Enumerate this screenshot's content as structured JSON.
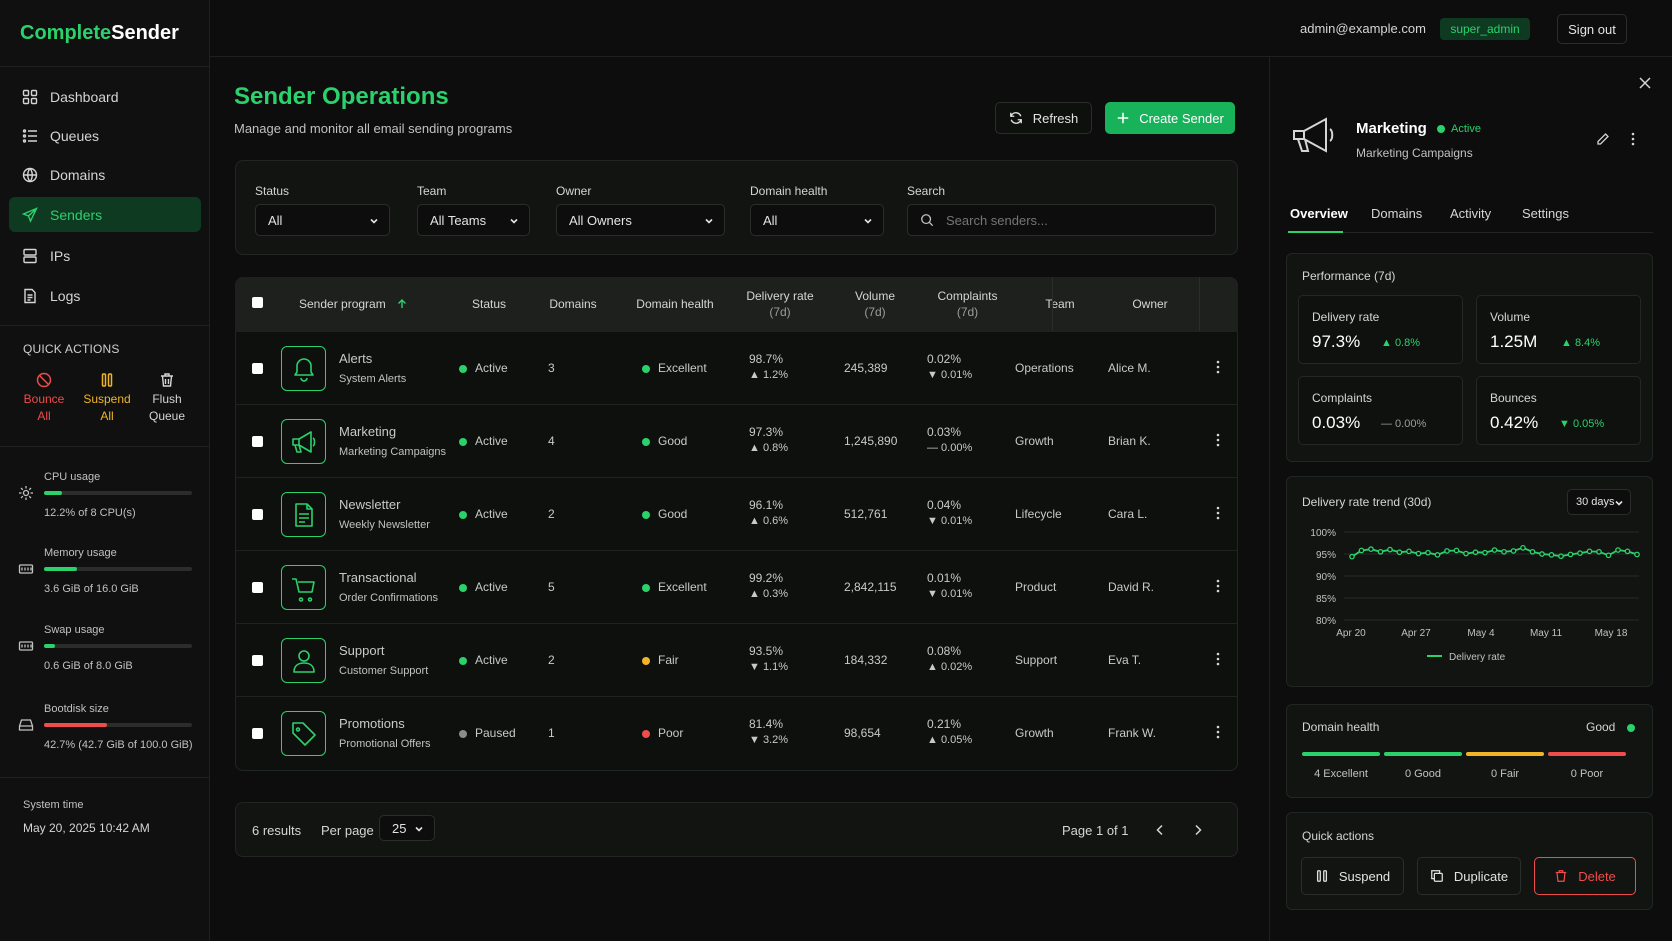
{
  "app": {
    "brand_a": "Complete",
    "brand_b": "Sender"
  },
  "header": {
    "email": "admin@example.com",
    "role": "super_admin",
    "signout": "Sign out"
  },
  "nav": [
    {
      "label": "Dashboard",
      "icon": "grid-icon"
    },
    {
      "label": "Queues",
      "icon": "list-icon"
    },
    {
      "label": "Domains",
      "icon": "globe-icon"
    },
    {
      "label": "Senders",
      "icon": "send-icon",
      "active": true
    },
    {
      "label": "IPs",
      "icon": "server-icon"
    },
    {
      "label": "Logs",
      "icon": "file-icon"
    }
  ],
  "quick_actions": {
    "title": "QUICK ACTIONS",
    "items": [
      {
        "l1": "Bounce",
        "l2": "All",
        "color": "#ef4c4c"
      },
      {
        "l1": "Suspend",
        "l2": "All",
        "color": "#f0b429"
      },
      {
        "l1": "Flush",
        "l2": "Queue",
        "color": "#d4d6d4"
      }
    ]
  },
  "resources": [
    {
      "label": "CPU usage",
      "value": "12.2% of 8 CPU(s)",
      "pct": 0.122,
      "color": "#2bd16b"
    },
    {
      "label": "Memory usage",
      "value": "3.6 GiB of 16.0 GiB",
      "pct": 0.225,
      "color": "#2bd16b"
    },
    {
      "label": "Swap usage",
      "value": "0.6 GiB of 8.0 GiB",
      "pct": 0.075,
      "color": "#2bd16b"
    },
    {
      "label": "Bootdisk size",
      "value": "42.7% (42.7 GiB of 100.0 GiB)",
      "pct": 0.427,
      "color": "#ef4c4c"
    }
  ],
  "system_time": {
    "label": "System time",
    "value": "May 20, 2025 10:42 AM"
  },
  "page": {
    "title": "Sender Operations",
    "subtitle": "Manage and monitor all email sending programs",
    "refresh": "Refresh",
    "create": "Create Sender"
  },
  "filters": {
    "status": {
      "label": "Status",
      "value": "All"
    },
    "team": {
      "label": "Team",
      "value": "All Teams"
    },
    "owner": {
      "label": "Owner",
      "value": "All Owners"
    },
    "health": {
      "label": "Domain health",
      "value": "All"
    },
    "search": {
      "label": "Search",
      "placeholder": "Search senders..."
    }
  },
  "table": {
    "headers": {
      "program": "Sender program",
      "status": "Status",
      "domains": "Domains",
      "health": "Domain health",
      "delivery": "Delivery rate",
      "delivery_sub": "(7d)",
      "volume": "Volume",
      "volume_sub": "(7d)",
      "complaints": "Complaints",
      "complaints_sub": "(7d)",
      "team": "Team",
      "owner": "Owner"
    },
    "rows": [
      {
        "name": "Alerts",
        "sub": "System Alerts",
        "icon": "bell-icon",
        "status": "Active",
        "status_color": "#2bd16b",
        "domains": "3",
        "health": "Excellent",
        "health_color": "#2bd16b",
        "rate": "98.7%",
        "rate_chg": "▲ 1.2%",
        "rate_cls": "g",
        "volume": "245,389",
        "comp": "0.02%",
        "comp_chg": "▼ 0.01%",
        "comp_cls": "g",
        "team": "Operations",
        "owner": "Alice M."
      },
      {
        "name": "Marketing",
        "sub": "Marketing Campaigns",
        "icon": "megaphone-icon",
        "status": "Active",
        "status_color": "#2bd16b",
        "domains": "4",
        "health": "Good",
        "health_color": "#2bd16b",
        "rate": "97.3%",
        "rate_chg": "▲ 0.8%",
        "rate_cls": "g",
        "volume": "1,245,890",
        "comp": "0.03%",
        "comp_chg": "— 0.00%",
        "comp_cls": "mut",
        "team": "Growth",
        "owner": "Brian K."
      },
      {
        "name": "Newsletter",
        "sub": "Weekly Newsletter",
        "icon": "document-icon",
        "status": "Active",
        "status_color": "#2bd16b",
        "domains": "2",
        "health": "Good",
        "health_color": "#2bd16b",
        "rate": "96.1%",
        "rate_chg": "▲ 0.6%",
        "rate_cls": "g",
        "volume": "512,761",
        "comp": "0.04%",
        "comp_chg": "▼ 0.01%",
        "comp_cls": "g",
        "team": "Lifecycle",
        "owner": "Cara L."
      },
      {
        "name": "Transactional",
        "sub": "Order Confirmations",
        "icon": "cart-icon",
        "status": "Active",
        "status_color": "#2bd16b",
        "domains": "5",
        "health": "Excellent",
        "health_color": "#2bd16b",
        "rate": "99.2%",
        "rate_chg": "▲ 0.3%",
        "rate_cls": "g",
        "volume": "2,842,115",
        "comp": "0.01%",
        "comp_chg": "▼ 0.01%",
        "comp_cls": "g",
        "team": "Product",
        "owner": "David R."
      },
      {
        "name": "Support",
        "sub": "Customer Support",
        "icon": "user-icon",
        "status": "Active",
        "status_color": "#2bd16b",
        "domains": "2",
        "health": "Fair",
        "health_color": "#f0b429",
        "rate": "93.5%",
        "rate_chg": "▼ 1.1%",
        "rate_cls": "r",
        "volume": "184,332",
        "comp": "0.08%",
        "comp_chg": "▲ 0.02%",
        "comp_cls": "r",
        "team": "Support",
        "owner": "Eva T."
      },
      {
        "name": "Promotions",
        "sub": "Promotional Offers",
        "icon": "tag-icon",
        "status": "Paused",
        "status_color": "#8a8d8a",
        "domains": "1",
        "health": "Poor",
        "health_color": "#ef4c4c",
        "rate": "81.4%",
        "rate_chg": "▼ 3.2%",
        "rate_cls": "r",
        "volume": "98,654",
        "comp": "0.21%",
        "comp_chg": "▲ 0.05%",
        "comp_cls": "r",
        "team": "Growth",
        "owner": "Frank W."
      }
    ]
  },
  "pagination": {
    "results": "6 results",
    "per_page_label": "Per page",
    "per_page": "25",
    "page": "Page 1 of 1"
  },
  "panel": {
    "name": "Marketing",
    "status": "Active",
    "sub": "Marketing Campaigns",
    "tabs": [
      "Overview",
      "Domains",
      "Activity",
      "Settings"
    ],
    "perf_title": "Performance (7d)",
    "stats": [
      {
        "label": "Delivery rate",
        "value": "97.3%",
        "chg": "▲ 0.8%",
        "cls": "g"
      },
      {
        "label": "Volume",
        "value": "1.25M",
        "chg": "▲ 8.4%",
        "cls": "g"
      },
      {
        "label": "Complaints",
        "value": "0.03%",
        "chg": "— 0.00%",
        "cls": "mut"
      },
      {
        "label": "Bounces",
        "value": "0.42%",
        "chg": "▼ 0.05%",
        "cls": "g"
      }
    ],
    "trend_title": "Delivery rate trend (30d)",
    "trend_range": "30 days",
    "health_title": "Domain health",
    "health_value": "Good",
    "health_segments": [
      {
        "label": "4 Excellent",
        "color": "#2bd16b"
      },
      {
        "label": "0 Good",
        "color": "#2bd16b"
      },
      {
        "label": "0 Fair",
        "color": "#f0b429"
      },
      {
        "label": "0 Poor",
        "color": "#ef4c4c"
      }
    ],
    "qa_title": "Quick actions",
    "suspend": "Suspend",
    "duplicate": "Duplicate",
    "delete": "Delete"
  },
  "chart_data": {
    "type": "line",
    "title": "Delivery rate trend (30d)",
    "ylim": [
      80,
      100
    ],
    "y_ticks": [
      "100%",
      "95%",
      "90%",
      "85%",
      "80%"
    ],
    "x_ticks": [
      "Apr 20",
      "Apr 27",
      "May 4",
      "May 11",
      "May 18"
    ],
    "series": [
      {
        "name": "Delivery rate",
        "color": "#2bd16b",
        "values": [
          94.4,
          95.8,
          96.1,
          95.5,
          96.0,
          95.4,
          95.6,
          95.1,
          95.3,
          94.8,
          95.7,
          95.8,
          95.1,
          95.4,
          95.3,
          95.9,
          95.5,
          95.7,
          96.4,
          95.5,
          95.0,
          94.8,
          94.5,
          94.9,
          95.2,
          95.6,
          95.5,
          94.7,
          95.9,
          95.6,
          94.9
        ]
      }
    ],
    "grid": true,
    "legend": "bottom"
  }
}
